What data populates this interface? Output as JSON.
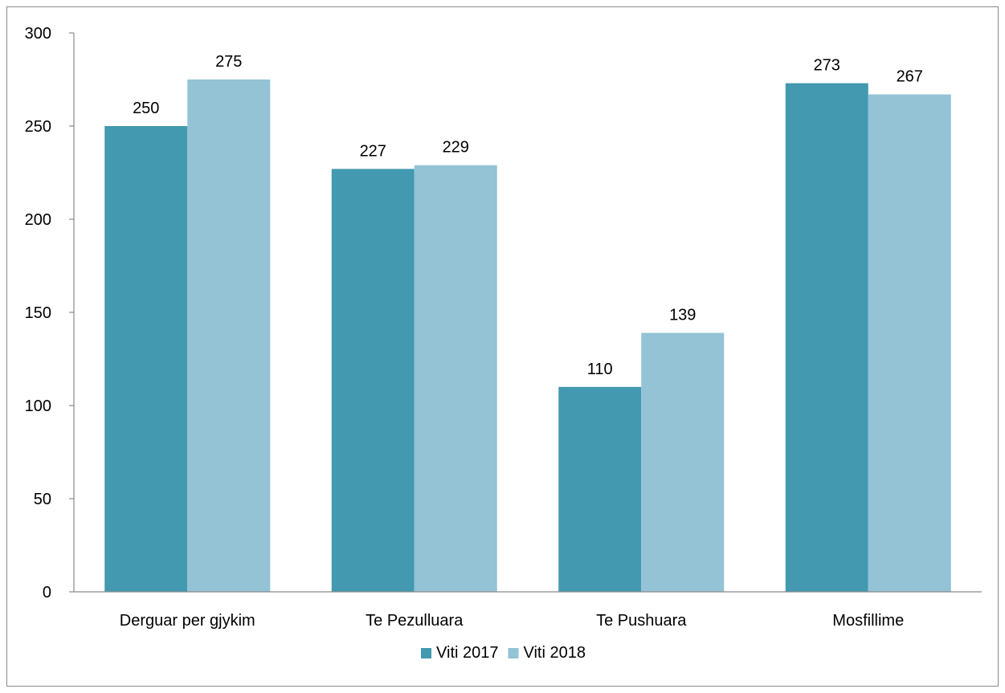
{
  "chart_data": {
    "type": "bar",
    "title": "",
    "xlabel": "",
    "ylabel": "",
    "categories": [
      "Derguar per gjykim",
      "Te Pezulluara",
      "Te Pushuara",
      "Mosfillime"
    ],
    "series": [
      {
        "name": "Viti 2017",
        "values": [
          250,
          227,
          110,
          273
        ],
        "color": "#4299b0"
      },
      {
        "name": "Viti 2018",
        "values": [
          275,
          229,
          139,
          267
        ],
        "color": "#93c3d5"
      }
    ],
    "ylim": [
      0,
      300
    ],
    "yticks": [
      0,
      50,
      100,
      150,
      200,
      250,
      300
    ],
    "grid": false,
    "legend_position": "bottom",
    "data_labels": true
  }
}
